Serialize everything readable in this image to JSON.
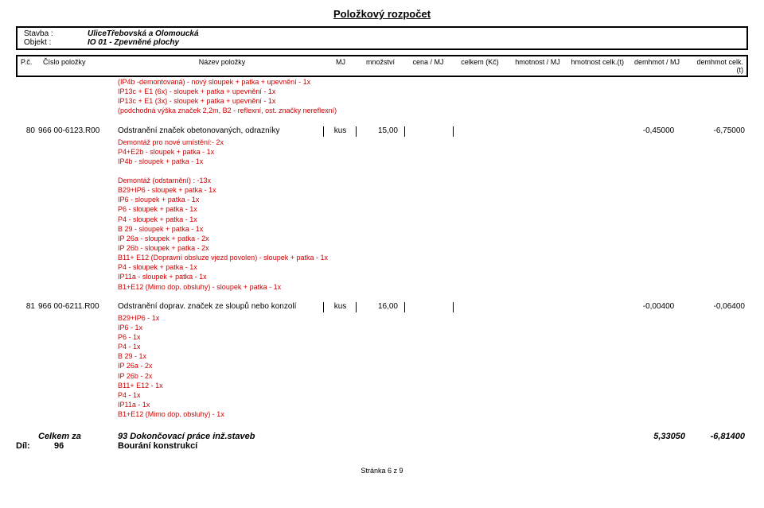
{
  "title": "Položkový rozpočet",
  "header": {
    "stavba_label": "Stavba :",
    "stavba_value": "UliceTřebovská a Olomoucká",
    "objekt_label": "Objekt :",
    "objekt_value": "IO 01 - Zpevněné plochy"
  },
  "columns": {
    "pc": "P.č.",
    "cislo": "Číslo položky",
    "nazev": "Název položky",
    "mj": "MJ",
    "mnozstvi": "množství",
    "cena": "cena / MJ",
    "celkem": "celkem (Kč)",
    "hmj": "hmotnost / MJ",
    "hct": "hmotnost celk.(t)",
    "dmj": "demhmot / MJ",
    "dct": "demhmot celk.(t)"
  },
  "top_notes": [
    "(IP4b -demontovaná) - nový sloupek + patka + upevnění - 1x",
    "IP13c + E1 (6x) - sloupek + patka + upevnění - 1x",
    "IP13c + E1 (3x) - sloupek + patka + upevnění - 1x",
    "(podchodná výška značek 2,2m, B2 - reflexní, ost. značky nereflexní)"
  ],
  "row80": {
    "pc": "80",
    "cislo": "966 00-6123.R00",
    "nazev": "Odstranění značek obetonovaných, odrazníky",
    "mj": "kus",
    "mnoz": "15,00",
    "dmj": "-0,45000",
    "dct": "-6,75000"
  },
  "row80_notes_a": [
    "Demontáž pro nové umístění:- 2x",
    "P4+E2b - sloupek + patka - 1x",
    "IP4b - sloupek + patka - 1x"
  ],
  "row80_notes_b": [
    "Demontáž (odstarnění) : -13x",
    "B29+IP6 - sloupek + patka - 1x",
    "IP6 - sloupek + patka - 1x",
    "P6 - sloupek + patka - 1x",
    "P4 - sloupek + patka - 1x",
    "B 29 - sloupek + patka - 1x",
    "IP 26a - sloupek + patka - 2x",
    "IP 26b - sloupek + patka - 2x",
    "B11+ E12 (Dopravní obsluze vjezd povolen) - sloupek + patka - 1x",
    "P4 - sloupek + patka - 1x",
    "IP11a - sloupek + patka - 1x",
    "B1+E12 (Mimo dop. obsluhy) - sloupek + patka - 1x"
  ],
  "row81": {
    "pc": "81",
    "cislo": "966 00-6211.R00",
    "nazev": "Odstranění doprav. značek ze sloupů nebo konzolí",
    "mj": "kus",
    "mnoz": "16,00",
    "dmj": "-0,00400",
    "dct": "-0,06400"
  },
  "row81_notes": [
    "B29+IP6 - 1x",
    "IP6 - 1x",
    "P6 - 1x",
    "P4 - 1x",
    "B 29 - 1x",
    "IP 26a - 2x",
    "IP 26b - 2x",
    "B11+ E12  - 1x",
    "P4 - 1x",
    "IP11a -  1x",
    "B1+E12 (Mimo dop. obsluhy) - 1x"
  ],
  "footer": {
    "label": "Celkem za",
    "text": "93 Dokončovací práce inž.staveb",
    "num1": "5,33050",
    "num2": "-6,81400"
  },
  "dil": {
    "label": "Díl:",
    "code": "96",
    "text": "Bourání konstrukcí"
  },
  "pagenum": "Stránka 6 z 9"
}
